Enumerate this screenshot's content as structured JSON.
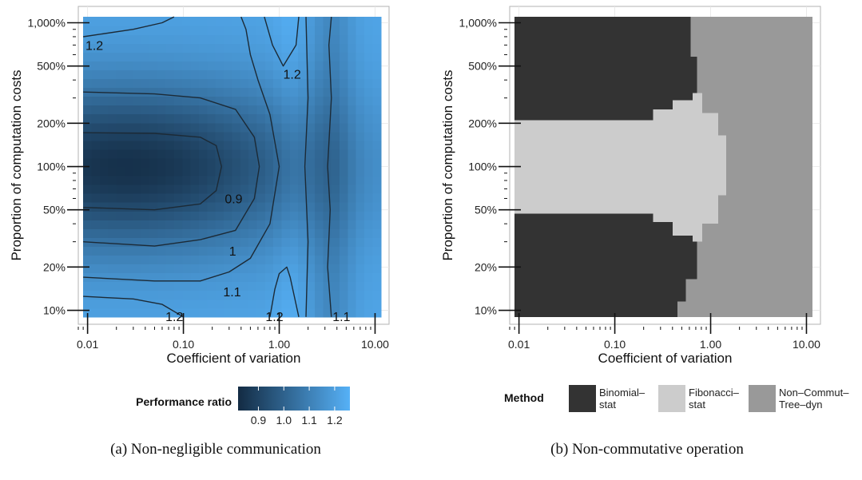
{
  "chart_data": [
    {
      "type": "heatmap",
      "title": "",
      "xlabel": "Coefficient of variation",
      "ylabel": "Proportion of computation costs",
      "x_scale": "log",
      "y_scale": "log",
      "xlim": [
        0.008,
        14
      ],
      "ylim": [
        8,
        1300
      ],
      "x_ticks": [
        0.01,
        0.1,
        1,
        10
      ],
      "x_tick_labels": [
        "0.01",
        "0.10",
        "1.00",
        "10.00"
      ],
      "y_ticks": [
        10,
        20,
        50,
        100,
        200,
        500,
        1000
      ],
      "y_tick_labels": [
        "10%",
        "20%",
        "50%",
        "100%",
        "200%",
        "500%",
        "1,000%"
      ],
      "x_range": [
        0.009,
        11.5
      ],
      "y_range": [
        9,
        1100
      ],
      "legend": {
        "title": "Performance ratio",
        "placement": "bottom",
        "breaks": [
          0.9,
          1.0,
          1.1,
          1.2
        ],
        "break_labels": [
          "0.9",
          "1.0",
          "1.1",
          "1.2"
        ],
        "limits": [
          0.82,
          1.26
        ],
        "low_color": "#132b43",
        "high_color": "#56b1f7"
      },
      "contour_labels": [
        {
          "text": "1.2",
          "x": 0.0095,
          "y": 700
        },
        {
          "text": "1.2",
          "x": 1.1,
          "y": 440
        },
        {
          "text": "0.9",
          "x": 0.27,
          "y": 60
        },
        {
          "text": "1",
          "x": 0.3,
          "y": 26
        },
        {
          "text": "1.1",
          "x": 0.26,
          "y": 13.5
        },
        {
          "text": "1.2",
          "x": 0.065,
          "y": 9.1
        },
        {
          "text": "1.2",
          "x": 0.72,
          "y": 9.1
        },
        {
          "text": "1.1",
          "x": 3.6,
          "y": 9.1
        }
      ],
      "caption": "(a)  Non-negligible communication"
    },
    {
      "type": "heatmap",
      "title": "",
      "xlabel": "Coefficient of variation",
      "ylabel": "Proportion of computation costs",
      "x_scale": "log",
      "y_scale": "log",
      "xlim": [
        0.008,
        14
      ],
      "ylim": [
        8,
        1300
      ],
      "x_ticks": [
        0.01,
        0.1,
        1,
        10
      ],
      "x_tick_labels": [
        "0.01",
        "0.10",
        "1.00",
        "10.00"
      ],
      "y_ticks": [
        10,
        20,
        50,
        100,
        200,
        500,
        1000
      ],
      "y_tick_labels": [
        "10%",
        "20%",
        "50%",
        "100%",
        "200%",
        "500%",
        "1,000%"
      ],
      "x_range": [
        0.009,
        11.5
      ],
      "y_range": [
        9,
        1100
      ],
      "regions": [
        {
          "name": "Fibonacci–stat",
          "boundary": [
            [
              0.009,
              47
            ],
            [
              0.25,
              47
            ],
            [
              0.25,
              41
            ],
            [
              0.4,
              41
            ],
            [
              0.4,
              33
            ],
            [
              0.65,
              33
            ],
            [
              0.65,
              30
            ],
            [
              0.82,
              30
            ],
            [
              0.82,
              40
            ],
            [
              1.2,
              40
            ],
            [
              1.2,
              63
            ],
            [
              1.45,
              63
            ],
            [
              1.45,
              165
            ],
            [
              1.2,
              165
            ],
            [
              1.2,
              235
            ],
            [
              0.82,
              235
            ],
            [
              0.82,
              325
            ],
            [
              0.65,
              325
            ],
            [
              0.65,
              290
            ],
            [
              0.4,
              290
            ],
            [
              0.4,
              250
            ],
            [
              0.25,
              250
            ],
            [
              0.25,
              210
            ],
            [
              0.009,
              210
            ]
          ]
        },
        {
          "name": "Non–Commut–Tree–dyn",
          "boundary": [
            [
              0.45,
              9
            ],
            [
              0.45,
              11.5
            ],
            [
              0.55,
              11.5
            ],
            [
              0.55,
              16.5
            ],
            [
              0.72,
              16.5
            ],
            [
              0.72,
              30
            ],
            [
              0.82,
              30
            ],
            [
              0.82,
              40
            ],
            [
              1.2,
              40
            ],
            [
              1.2,
              63
            ],
            [
              1.45,
              63
            ],
            [
              1.45,
              165
            ],
            [
              1.2,
              165
            ],
            [
              1.2,
              235
            ],
            [
              0.82,
              235
            ],
            [
              0.82,
              325
            ],
            [
              0.72,
              325
            ],
            [
              0.72,
              580
            ],
            [
              0.62,
              580
            ],
            [
              0.62,
              1100
            ],
            [
              11.5,
              1100
            ],
            [
              11.5,
              9
            ]
          ]
        }
      ],
      "base_region": "Binomial–stat",
      "legend": {
        "title": "Method",
        "placement": "bottom",
        "entries": [
          {
            "label": [
              "Binomial–",
              "stat"
            ],
            "color": "#333333"
          },
          {
            "label": [
              "Fibonacci–",
              "stat"
            ],
            "color": "#cccccc"
          },
          {
            "label": [
              "Non–Commut–",
              "Tree–dyn"
            ],
            "color": "#999999"
          }
        ]
      },
      "caption": "(b)  Non-commutative operation"
    }
  ]
}
